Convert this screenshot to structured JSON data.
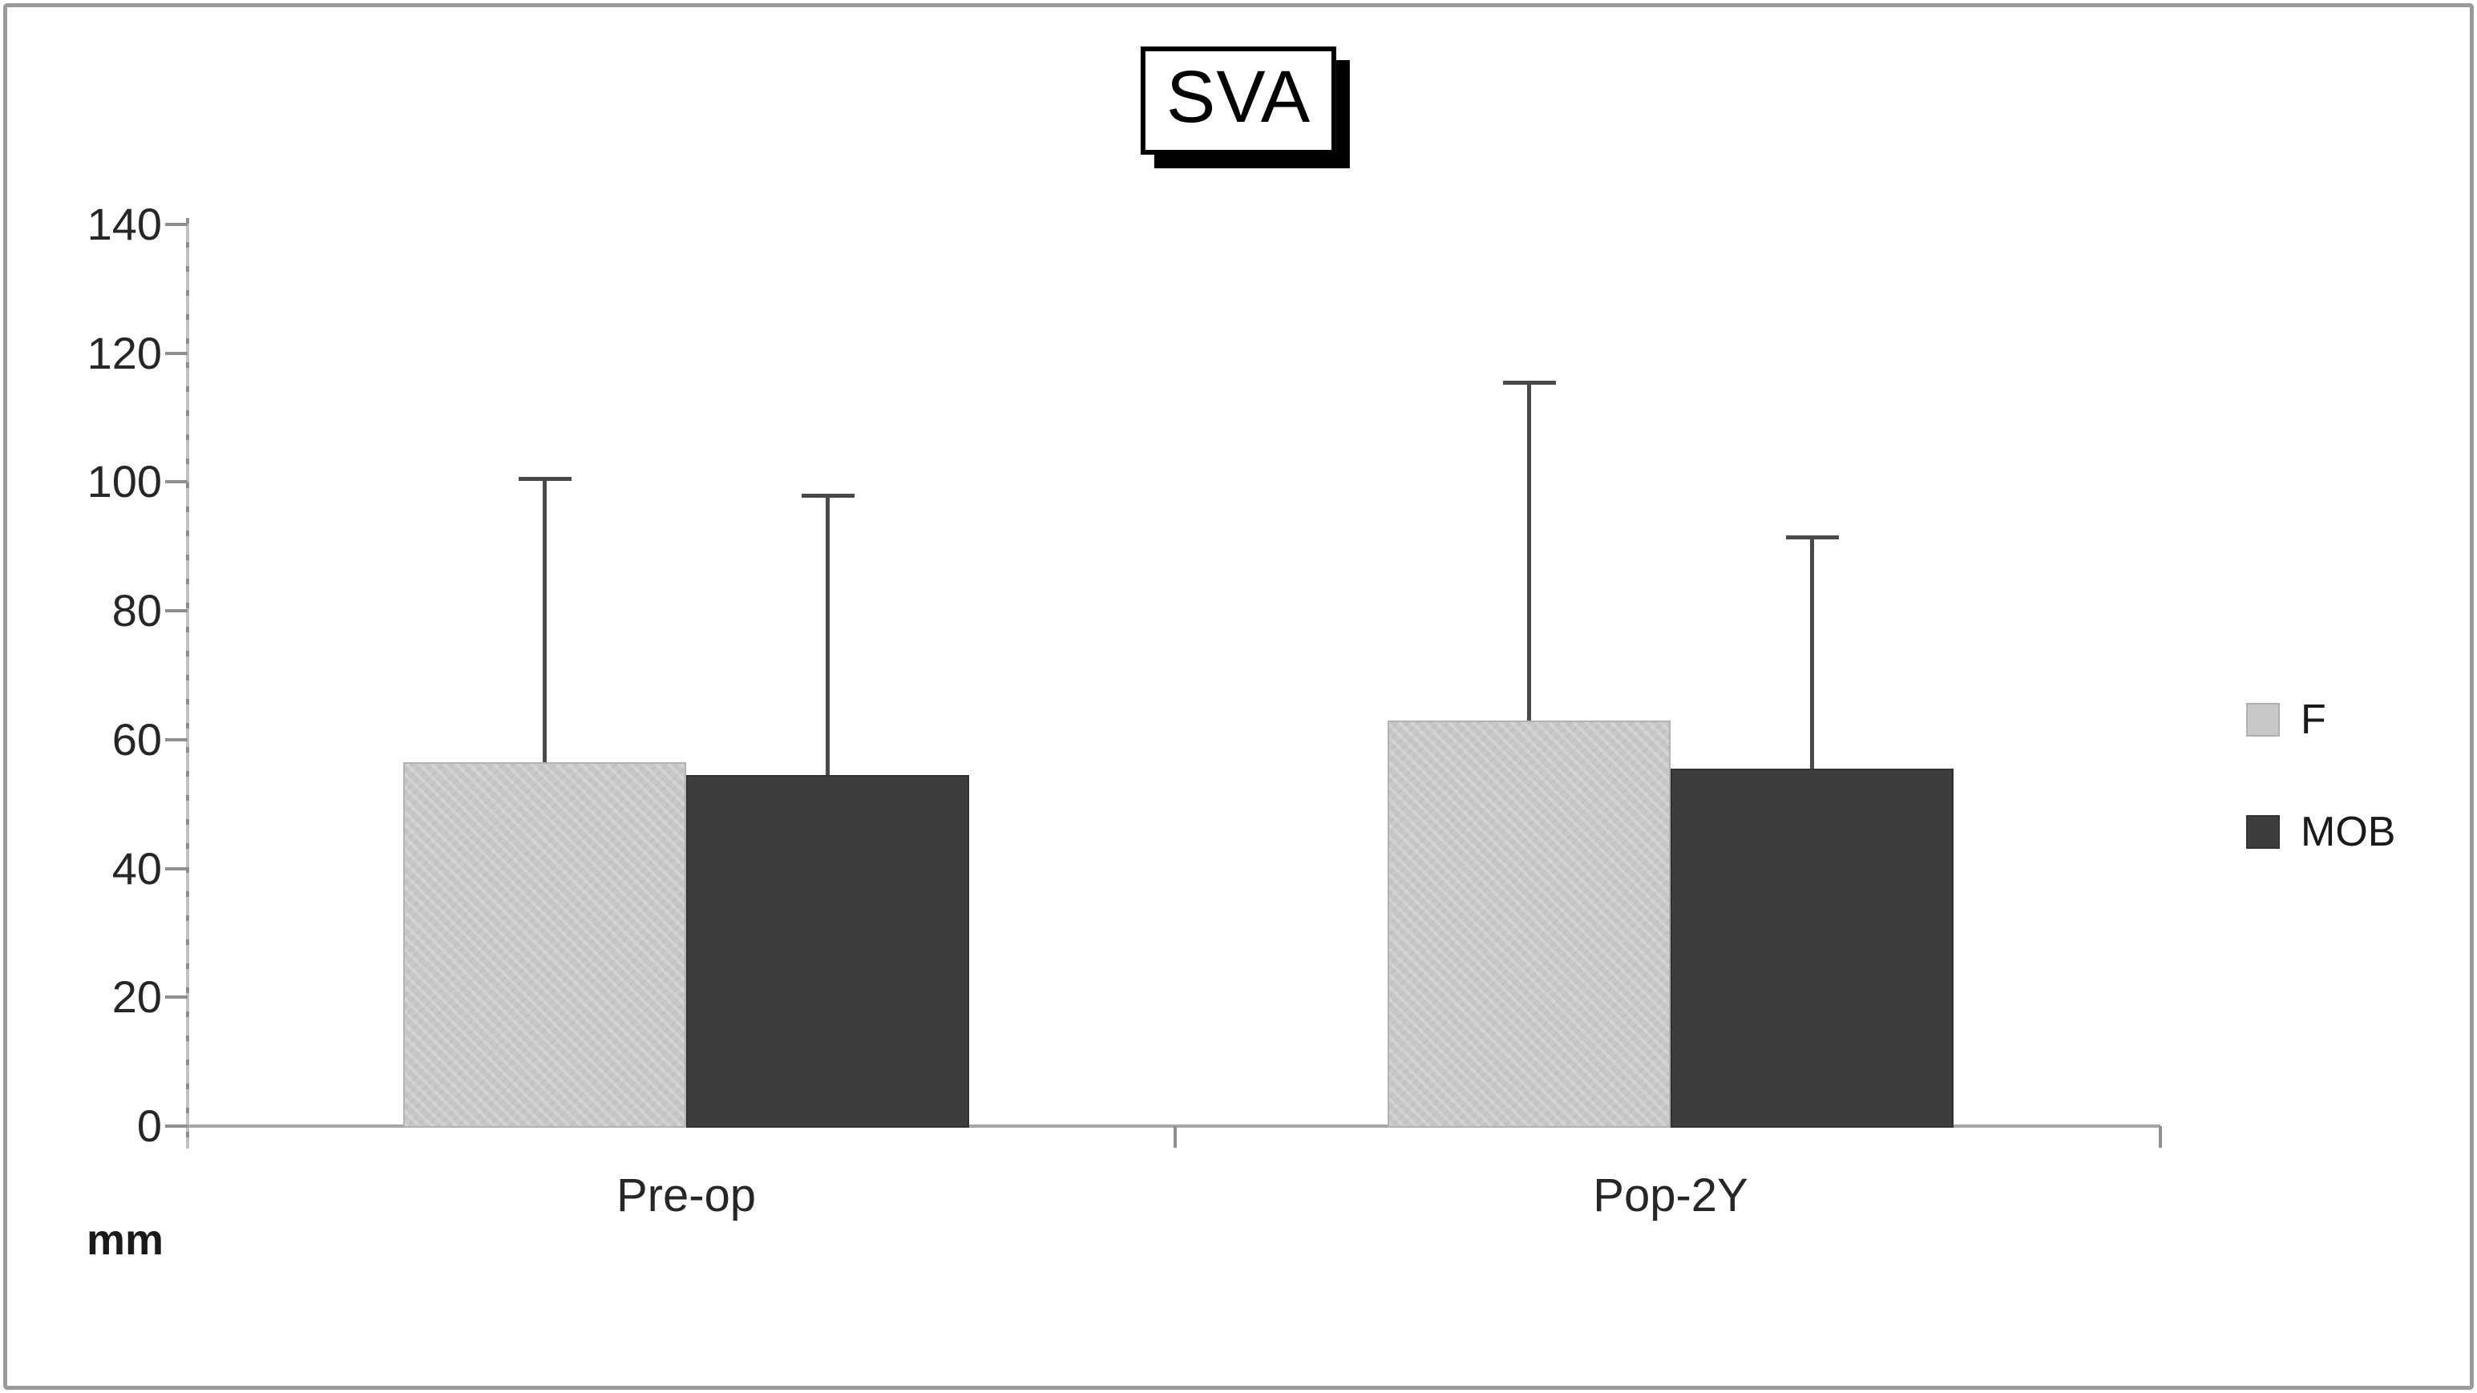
{
  "title": "SVA",
  "unit_label": "mm",
  "legend": {
    "items": [
      {
        "label": "F",
        "color": "#c8c8c8"
      },
      {
        "label": "MOB",
        "color": "#3d3d3d"
      }
    ]
  },
  "chart_data": {
    "type": "bar",
    "title": "SVA",
    "categories": [
      "Pre-op",
      "Pop-2Y"
    ],
    "series": [
      {
        "name": "F",
        "color": "#c8c8c8",
        "values": [
          56.5,
          63
        ],
        "error_plus": [
          44,
          52.5
        ]
      },
      {
        "name": "MOB",
        "color": "#3d3d3d",
        "values": [
          54.5,
          55.5
        ],
        "error_plus": [
          43.5,
          36
        ]
      }
    ],
    "ylabel": "mm",
    "ylim": [
      0,
      140
    ],
    "yticks": [
      0,
      20,
      40,
      60,
      80,
      100,
      120,
      140
    ],
    "grid": false,
    "legend_position": "right",
    "error_bars": "upper_only",
    "axis_color": "#a6a6a6"
  }
}
